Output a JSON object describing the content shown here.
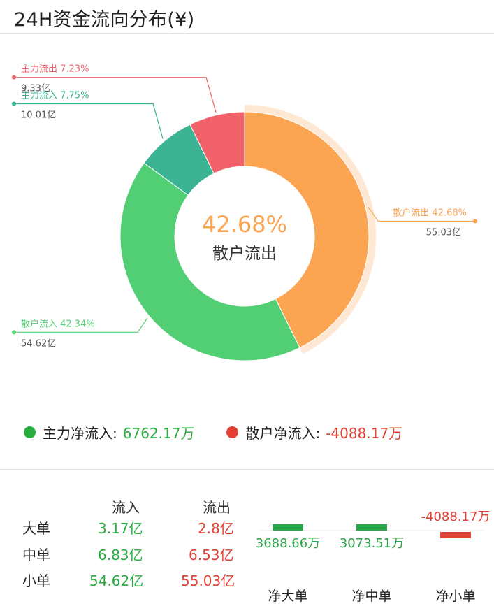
{
  "title": "24H资金流向分布(¥)",
  "chart_data": [
    {
      "type": "pie",
      "variant": "donut",
      "center_value": "42.68%",
      "center_label": "散户流出",
      "slices": [
        {
          "name": "散户流出",
          "percent": 42.68,
          "amount": "55.03亿",
          "color": "#fba452",
          "label": "散户流出 42.68%"
        },
        {
          "name": "散户流入",
          "percent": 42.34,
          "amount": "54.62亿",
          "color": "#52cf74",
          "label": "散户流入 42.34%"
        },
        {
          "name": "主力流入",
          "percent": 7.75,
          "amount": "10.01亿",
          "color": "#3cb393",
          "label": "主力流入 7.75%"
        },
        {
          "name": "主力流出",
          "percent": 7.23,
          "amount": "9.33亿",
          "color": "#f1626a",
          "label": "主力流出 7.23%"
        }
      ],
      "highlighted": "散户流出"
    },
    {
      "type": "bar",
      "categories": [
        "净大单",
        "净中单",
        "净小单"
      ],
      "values": [
        3688.66,
        3073.51,
        -4088.17
      ],
      "labels": [
        "3688.66万",
        "3073.51万",
        "-4088.17万"
      ],
      "colors": [
        "#2ea449",
        "#2ea449",
        "#e3423a"
      ]
    }
  ],
  "legend": {
    "main": {
      "label": "主力净流入:",
      "value": "6762.17万",
      "dot_color": "#27ae3f"
    },
    "retail": {
      "label": "散户净流入:",
      "value": "-4088.17万",
      "dot_color": "#e34033"
    }
  },
  "table": {
    "headers": [
      "流入",
      "流出"
    ],
    "rows": [
      {
        "label": "大单",
        "in": "3.17亿",
        "out": "2.8亿"
      },
      {
        "label": "中单",
        "in": "6.83亿",
        "out": "6.53亿"
      },
      {
        "label": "小单",
        "in": "54.62亿",
        "out": "55.03亿"
      }
    ]
  }
}
